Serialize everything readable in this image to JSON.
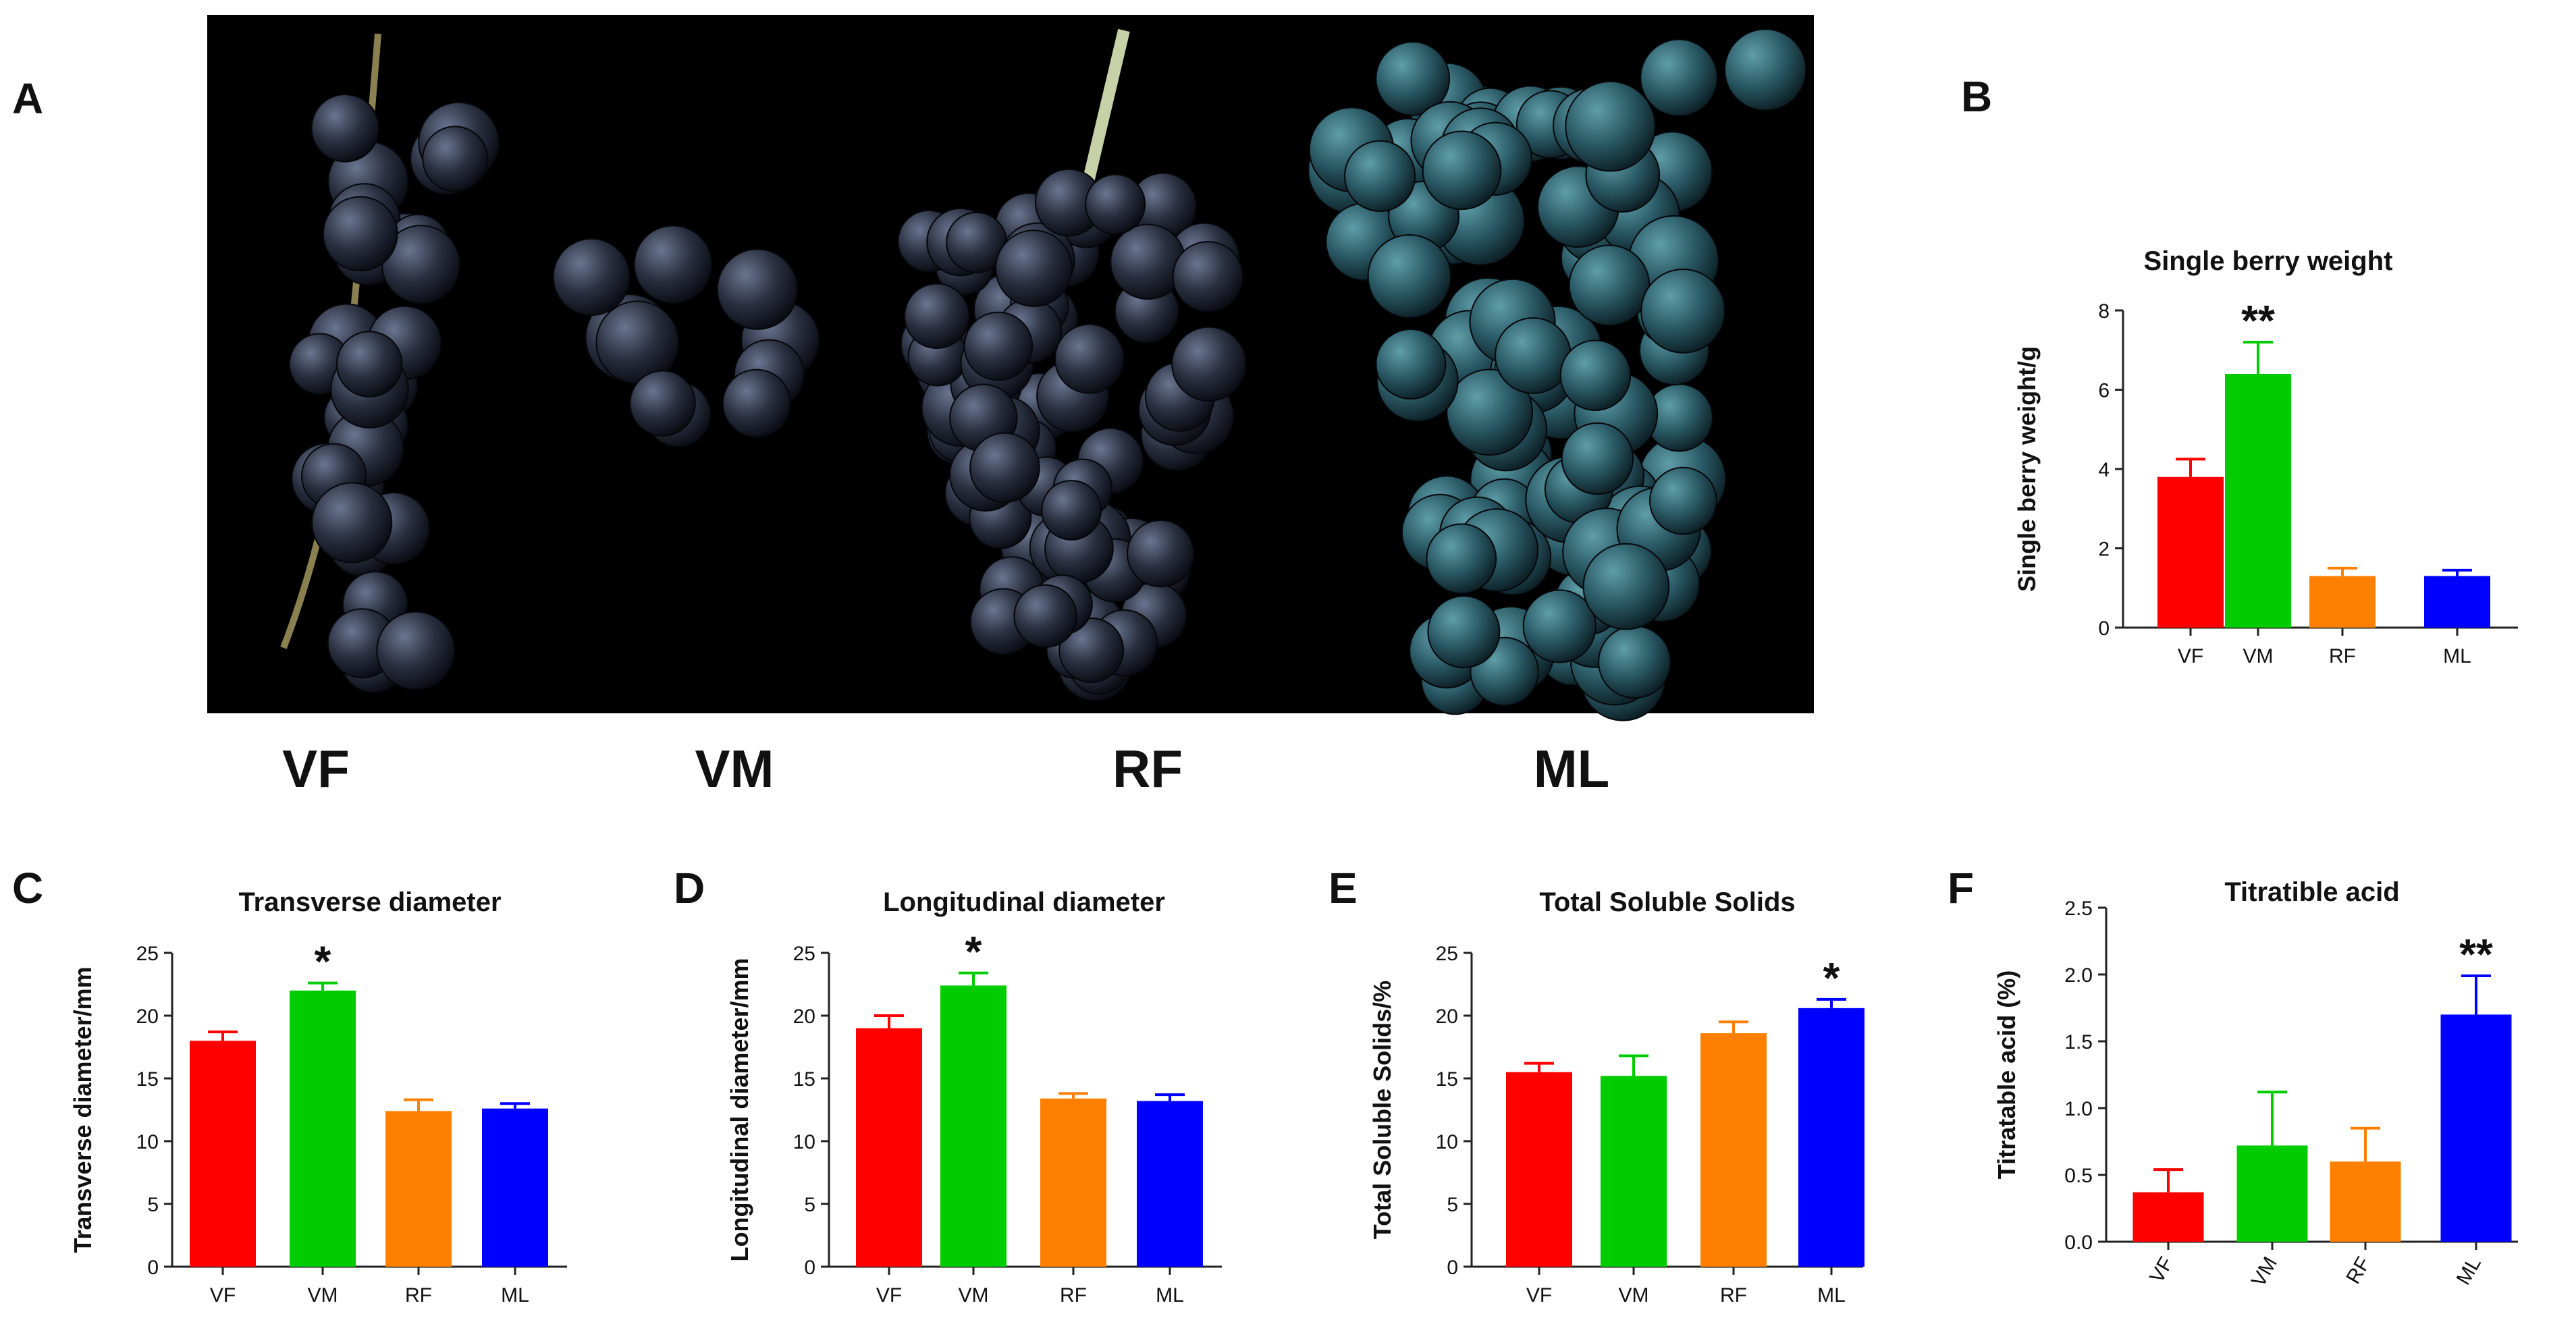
{
  "panel_letters": [
    "A",
    "B",
    "C",
    "D",
    "E",
    "F"
  ],
  "photo_labels": [
    "VF",
    "VM",
    "RF",
    "ML"
  ],
  "colors": {
    "VF": "#ff0000",
    "VM": "#00cc00",
    "RF": "#ff8000",
    "ML": "#0000ff"
  },
  "chart_data": [
    {
      "id": "B",
      "type": "bar",
      "title": "Single berry weight",
      "ylabel": "Single berry weight/g",
      "xlabel": "",
      "categories": [
        "VF",
        "VM",
        "RF",
        "ML"
      ],
      "values": [
        3.8,
        6.4,
        1.3,
        1.3
      ],
      "errors": [
        0.45,
        0.8,
        0.2,
        0.15
      ],
      "ylim": [
        0,
        8
      ],
      "yticks": [
        "0",
        "2",
        "4",
        "6",
        "8"
      ],
      "significance": [
        "",
        "**",
        "",
        ""
      ],
      "rotate_xticks": false
    },
    {
      "id": "C",
      "type": "bar",
      "title": "Transverse diameter",
      "ylabel": "Transverse diameter/mm",
      "xlabel": "",
      "categories": [
        "VF",
        "VM",
        "RF",
        "ML"
      ],
      "values": [
        18.0,
        22.0,
        12.4,
        12.6
      ],
      "errors": [
        0.7,
        0.6,
        0.9,
        0.4
      ],
      "ylim": [
        0,
        25
      ],
      "yticks": [
        "0",
        "5",
        "10",
        "15",
        "20",
        "25"
      ],
      "significance": [
        "",
        "*",
        "",
        ""
      ],
      "rotate_xticks": false
    },
    {
      "id": "D",
      "type": "bar",
      "title": "Longitudinal diameter",
      "ylabel": "Longitudinal diameter/mm",
      "xlabel": "",
      "categories": [
        "VF",
        "VM",
        "RF",
        "ML"
      ],
      "values": [
        19.0,
        22.4,
        13.4,
        13.2
      ],
      "errors": [
        1.0,
        1.0,
        0.4,
        0.5
      ],
      "ylim": [
        0,
        25
      ],
      "yticks": [
        "0",
        "5",
        "10",
        "15",
        "20",
        "25"
      ],
      "significance": [
        "",
        "*",
        "",
        ""
      ],
      "rotate_xticks": false
    },
    {
      "id": "E",
      "type": "bar",
      "title": "Total Soluble Solids",
      "ylabel": "Total Soluble Solids/%",
      "xlabel": "",
      "categories": [
        "VF",
        "VM",
        "RF",
        "ML"
      ],
      "values": [
        15.5,
        15.2,
        18.6,
        20.6
      ],
      "errors": [
        0.7,
        1.6,
        0.9,
        0.7
      ],
      "ylim": [
        0,
        25
      ],
      "yticks": [
        "0",
        "5",
        "10",
        "15",
        "20",
        "25"
      ],
      "significance": [
        "",
        "",
        "",
        "*"
      ],
      "rotate_xticks": false
    },
    {
      "id": "F",
      "type": "bar",
      "title": "Titratible acid",
      "ylabel": "Titratable acid (%)",
      "xlabel": "",
      "categories": [
        "VF",
        "VM",
        "RF",
        "ML"
      ],
      "values": [
        0.37,
        0.72,
        0.6,
        1.7
      ],
      "errors": [
        0.17,
        0.4,
        0.25,
        0.29
      ],
      "ylim": [
        0,
        2.5
      ],
      "yticks": [
        "0.0",
        "0.5",
        "1.0",
        "1.5",
        "2.0",
        "2.5"
      ],
      "significance": [
        "",
        "",
        "",
        "**"
      ],
      "rotate_xticks": true
    }
  ]
}
